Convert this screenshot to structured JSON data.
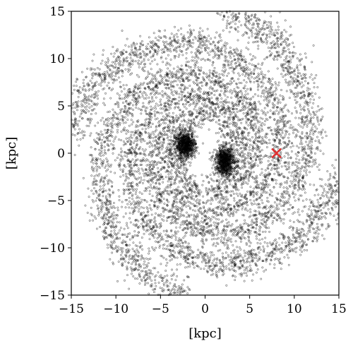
{
  "chart_data": {
    "type": "scatter",
    "title": "",
    "xlabel": "[kpc]",
    "ylabel": "[kpc]",
    "xlim": [
      -15,
      15
    ],
    "ylim": [
      -15,
      15
    ],
    "xticks": [
      -15,
      -10,
      -5,
      0,
      5,
      10,
      15
    ],
    "yticks": [
      -15,
      -10,
      -5,
      0,
      5,
      10,
      15
    ],
    "xtick_labels": [
      "−15",
      "−10",
      "−5",
      "0",
      "5",
      "10",
      "15"
    ],
    "ytick_labels": [
      "−15",
      "−10",
      "−5",
      "0",
      "5",
      "10",
      "15"
    ],
    "grid": false,
    "legend": "none",
    "marker_color": "#000000",
    "marker_style": "hollow-circle",
    "highlight_color": "#e03030",
    "series": [
      {
        "marker": "circle",
        "structure": "four-armed logarithmic spiral, dense central bar-like clumps",
        "arm_count": 4,
        "inner_clumps": [
          [
            -2.2,
            0.8
          ],
          [
            2.2,
            -0.8
          ]
        ],
        "inner_radius_kpc": 3.0,
        "outer_radius_kpc": 15.5,
        "pitch_angle_deg": 12,
        "approx_point_count": 9000
      },
      {
        "marker": "x",
        "points": [
          [
            8.0,
            0.0
          ]
        ]
      }
    ]
  }
}
